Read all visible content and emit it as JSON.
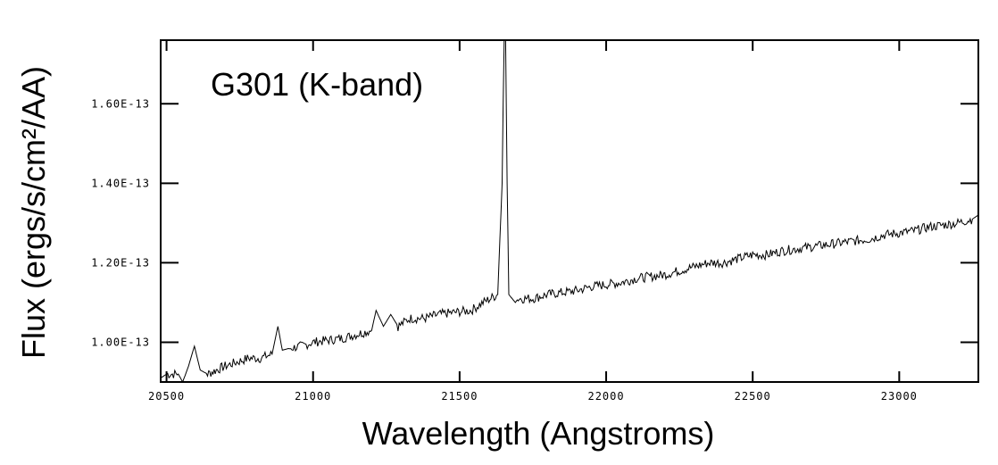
{
  "chart_data": {
    "type": "line",
    "title": "G301 (K-band)",
    "xlabel": "Wavelength (Angstroms)",
    "ylabel": "Flux (ergs/s/cm²/AA)",
    "xlim": [
      20480,
      23270
    ],
    "ylim": [
      9e-14,
      1.76e-13
    ],
    "xticks": [
      20500,
      21000,
      21500,
      22000,
      22500,
      23000
    ],
    "xtick_labels": [
      "20500",
      "21000",
      "21500",
      "22000",
      "22500",
      "23000"
    ],
    "yticks": [
      1e-13,
      1.2e-13,
      1.4e-13,
      1.6e-13
    ],
    "ytick_labels": [
      "1.00E-13",
      "1.20E-13",
      "1.40E-13",
      "1.60E-13"
    ],
    "grid": false,
    "series": [
      {
        "name": "G301",
        "x": [
          20480,
          20500,
          20540,
          20555,
          20575,
          20595,
          20615,
          20640,
          20670,
          20700,
          20740,
          20780,
          20820,
          20860,
          20880,
          20895,
          20920,
          20960,
          21000,
          21050,
          21100,
          21150,
          21200,
          21215,
          21240,
          21265,
          21290,
          21330,
          21380,
          21430,
          21480,
          21540,
          21580,
          21630,
          21645,
          21652,
          21657,
          21662,
          21668,
          21690,
          21700,
          21750,
          21800,
          21850,
          21900,
          21950,
          22000,
          22050,
          22100,
          22150,
          22200,
          22250,
          22300,
          22350,
          22400,
          22450,
          22500,
          22550,
          22600,
          22650,
          22700,
          22750,
          22800,
          22850,
          22900,
          22950,
          23000,
          23050,
          23100,
          23150,
          23200,
          23250,
          23270
        ],
        "y": [
          9.1e-14,
          9.2e-14,
          9.2e-14,
          9e-14,
          9.4e-14,
          9.9e-14,
          9.3e-14,
          9.2e-14,
          9.3e-14,
          9.4e-14,
          9.5e-14,
          9.6e-14,
          9.6e-14,
          9.7e-14,
          1.04e-13,
          9.8e-14,
          9.85e-14,
          9.9e-14,
          1e-13,
          1.005e-13,
          1.01e-13,
          1.02e-13,
          1.03e-13,
          1.08e-13,
          1.04e-13,
          1.07e-13,
          1.04e-13,
          1.06e-13,
          1.06e-13,
          1.07e-13,
          1.075e-13,
          1.08e-13,
          1.1e-13,
          1.12e-13,
          1.4e-13,
          1.78e-13,
          1.78e-13,
          1.4e-13,
          1.12e-13,
          1.1e-13,
          1.11e-13,
          1.11e-13,
          1.12e-13,
          1.125e-13,
          1.13e-13,
          1.14e-13,
          1.145e-13,
          1.15e-13,
          1.16e-13,
          1.165e-13,
          1.17e-13,
          1.18e-13,
          1.19e-13,
          1.2e-13,
          1.2e-13,
          1.21e-13,
          1.22e-13,
          1.22e-13,
          1.23e-13,
          1.235e-13,
          1.24e-13,
          1.245e-13,
          1.25e-13,
          1.255e-13,
          1.26e-13,
          1.27e-13,
          1.275e-13,
          1.28e-13,
          1.29e-13,
          1.295e-13,
          1.3e-13,
          1.31e-13,
          1.32e-13
        ]
      }
    ]
  }
}
